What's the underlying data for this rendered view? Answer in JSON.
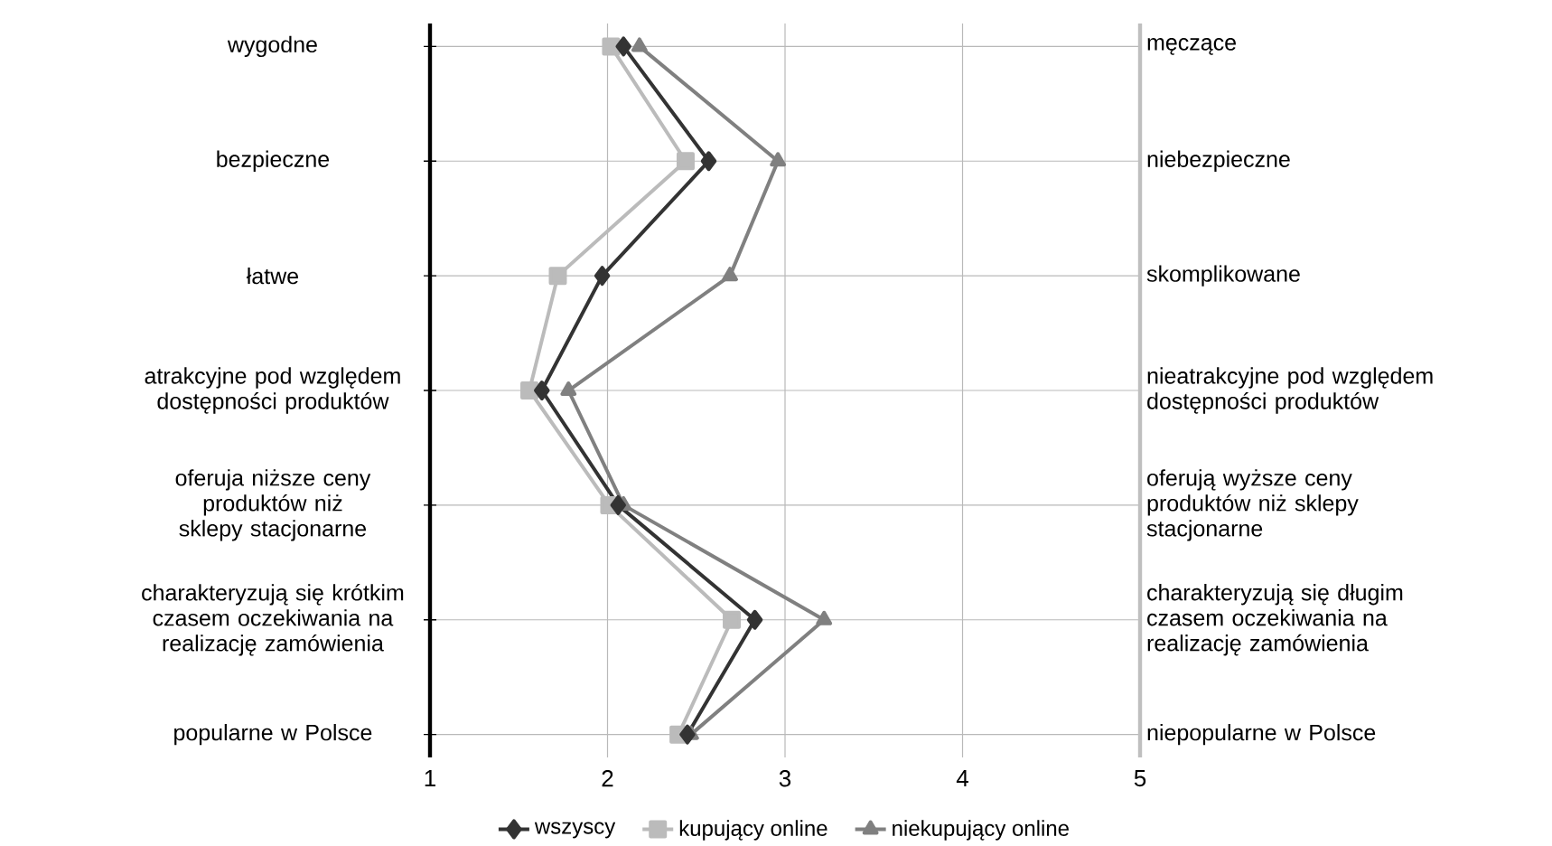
{
  "chart_data": {
    "type": "line",
    "orientation": "horizontal",
    "categories": [
      "wygodne",
      "bezpieczne",
      "łatwe",
      "atrakcyjne pod względem dostępności produktów",
      "oferuja niższe ceny produktów niż sklepy stacjonarne",
      "charakteryzują się krótkim czasem oczekiwania na realizację zamówienia",
      "popularne w Polsce"
    ],
    "y2_categories": [
      "męczące",
      "niebezpieczne",
      "skomplikowane",
      "nieatrakcyjne pod względem dostępności produktów",
      "oferują wyższe ceny produktów niż sklepy stacjonarne",
      "charakteryzują się długim czasem oczekiwania na realizację zamówienia",
      "niepopularne w Polsce"
    ],
    "series": [
      {
        "name": "wszyscy",
        "color": "#333333",
        "marker": "diamond",
        "values": [
          2.09,
          2.57,
          1.97,
          1.63,
          2.06,
          2.83,
          2.45
        ]
      },
      {
        "name": "kupujący online",
        "color": "#bbbbbb",
        "marker": "square",
        "values": [
          2.02,
          2.44,
          1.72,
          1.56,
          2.01,
          2.7,
          2.4
        ]
      },
      {
        "name": "niekupujący online",
        "color": "#808080",
        "marker": "triangle",
        "values": [
          2.18,
          2.96,
          2.69,
          1.78,
          2.09,
          3.22,
          2.47
        ]
      }
    ],
    "xlim": [
      1,
      5
    ],
    "xticks": [
      1,
      2,
      3,
      4,
      5
    ],
    "grid": true,
    "legend": "bottom"
  }
}
